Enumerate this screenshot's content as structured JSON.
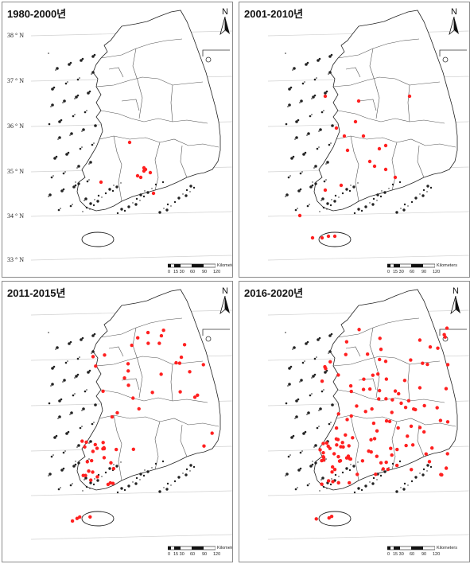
{
  "panels": [
    {
      "title": "1980-2000년",
      "points_count": 9
    },
    {
      "title": "2001-2010년",
      "points_count": 21
    },
    {
      "title": "2011-2015년",
      "points_count": 62
    },
    {
      "title": "2016-2020년",
      "points_count": 130
    }
  ],
  "north_label": "N",
  "latitude_labels": [
    "38 ° N",
    "37 ° N",
    "36 ° N",
    "35 ° N",
    "34 ° N",
    "33 ° N"
  ],
  "scale": {
    "ticks": [
      "0",
      "15 30",
      "60",
      "90",
      "120"
    ],
    "unit": "Kilometers"
  },
  "colors": {
    "point": "#ff2020",
    "outline": "#222222",
    "grid": "#d0d0d0",
    "border": "#8a8a8a"
  },
  "icons": [
    "north-arrow-icon"
  ]
}
